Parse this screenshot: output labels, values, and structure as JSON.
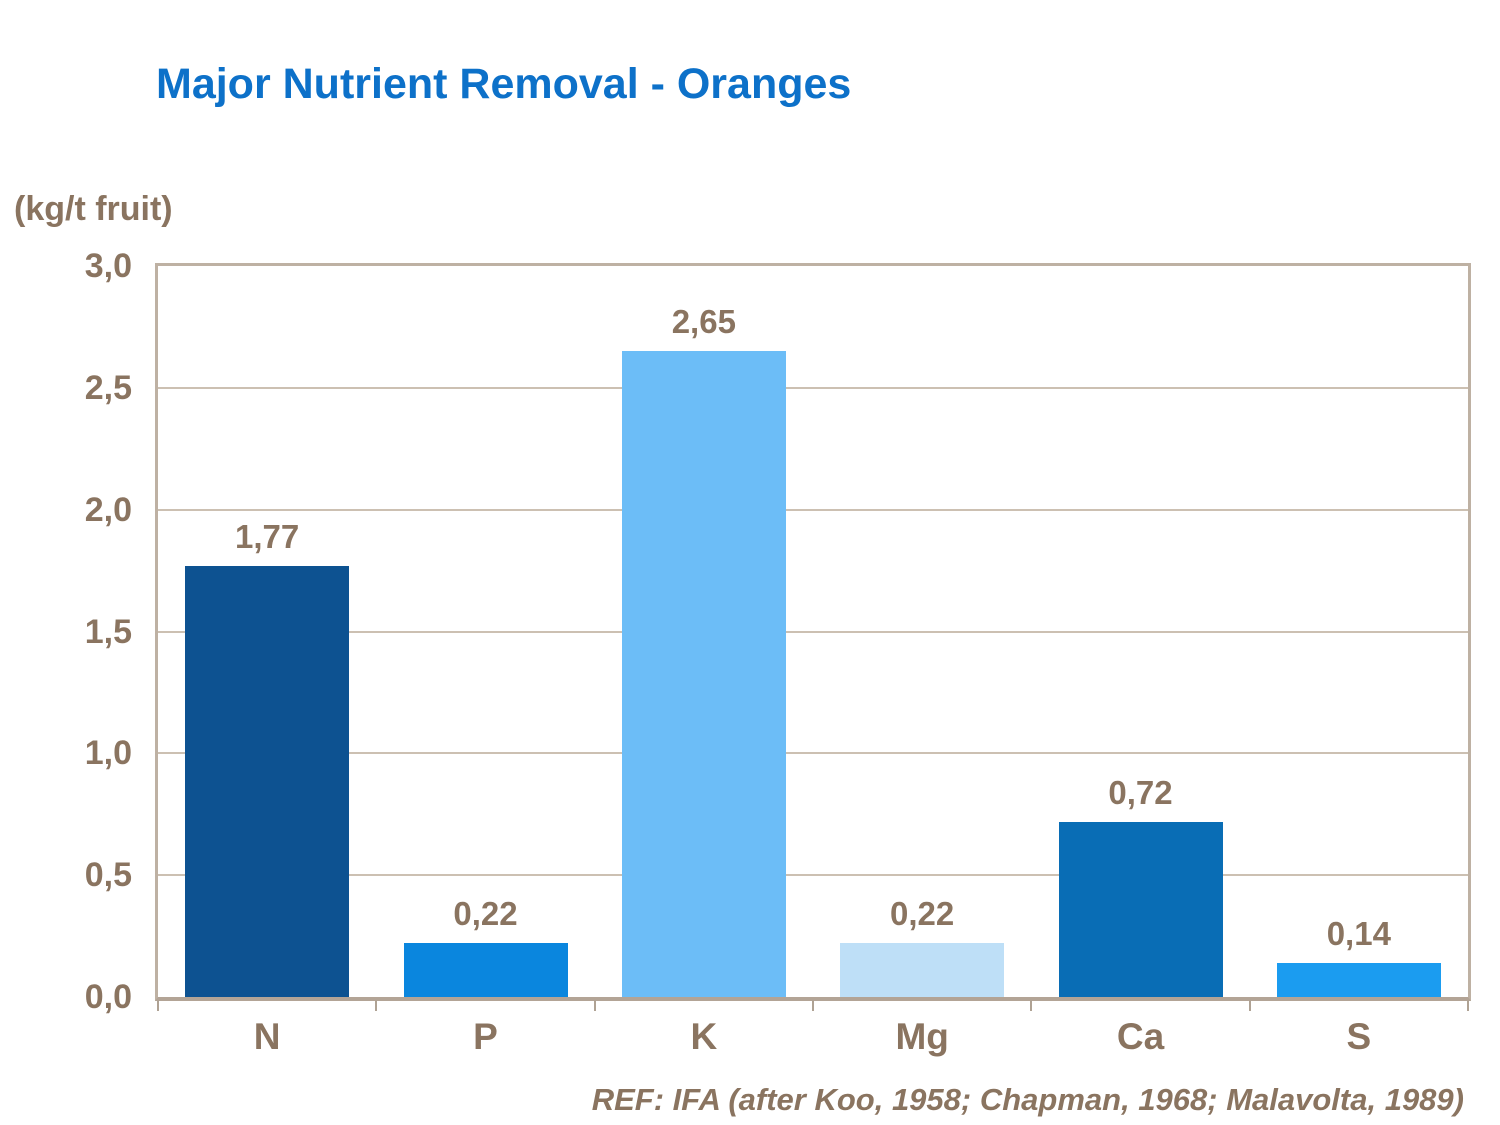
{
  "chart_data": {
    "type": "bar",
    "title": "Major Nutrient Removal - Oranges",
    "ylabel": "(kg/t fruit)",
    "xlabel": "",
    "footer": "REF: IFA (after Koo, 1958; Chapman, 1968; Malavolta, 1989)",
    "categories": [
      "N",
      "P",
      "K",
      "Mg",
      "Ca",
      "S"
    ],
    "values": [
      1.77,
      0.22,
      2.65,
      0.22,
      0.72,
      0.14
    ],
    "value_labels": [
      "1,77",
      "0,22",
      "2,65",
      "0,22",
      "0,72",
      "0,14"
    ],
    "bar_colors": [
      "#0D5291",
      "#0A86DE",
      "#6CBDF7",
      "#BEDFF7",
      "#096DB5",
      "#1B9CF0"
    ],
    "ylim": [
      0,
      3
    ],
    "ytick_step": 0.5,
    "yticks": [
      {
        "value": 3.0,
        "label": "3,0"
      },
      {
        "value": 2.5,
        "label": "2,5"
      },
      {
        "value": 2.0,
        "label": "2,0"
      },
      {
        "value": 1.5,
        "label": "1,5"
      },
      {
        "value": 1.0,
        "label": "1,0"
      },
      {
        "value": 0.5,
        "label": "0,5"
      },
      {
        "value": 0.0,
        "label": "0,0"
      }
    ],
    "grid": "horizontal",
    "legend": false
  },
  "colors": {
    "title_text": "#0D71C9",
    "axis_text": "#8A7460",
    "plot_border": "#BEB1A3",
    "gridline": "#CCC0B2",
    "background": "#FFFFFF"
  }
}
